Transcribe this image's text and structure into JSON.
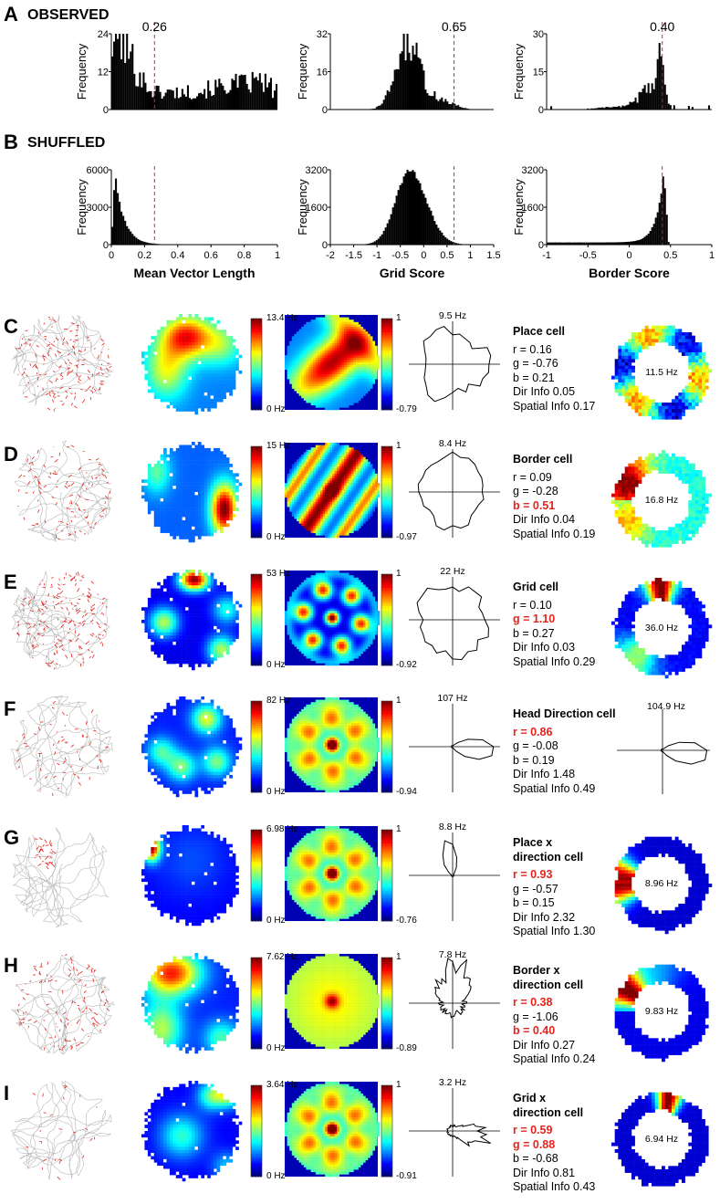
{
  "panel_letters": {
    "A": "A",
    "B": "B"
  },
  "panel_labels": {
    "observed": "OBSERVED",
    "shuffled": "SHUFFLED"
  },
  "colors": {
    "bars": "#000000",
    "threshold": "#e5231d",
    "highlight": "#e5231d",
    "trajectory": "#b9b9b9",
    "spikes": "#e5231d"
  },
  "chart_data": [
    {
      "type": "bar",
      "panel": "A",
      "column": "mvl",
      "ylabel": "Frequency",
      "threshold": 0.26,
      "threshold_label": "0.26",
      "xlim": [
        0,
        1
      ],
      "ylim": [
        0,
        24
      ],
      "yticks": [
        "0",
        "12",
        "24"
      ],
      "shape": "mvl-observed"
    },
    {
      "type": "bar",
      "panel": "A",
      "column": "grid",
      "ylabel": "Frequency",
      "threshold": 0.65,
      "threshold_label": "0.65",
      "xlim": [
        -2,
        1.5
      ],
      "ylim": [
        0,
        32
      ],
      "yticks": [
        "0",
        "16",
        "32"
      ],
      "shape": "grid-observed"
    },
    {
      "type": "bar",
      "panel": "A",
      "column": "border",
      "ylabel": "Frequency",
      "threshold": 0.4,
      "threshold_label": "0.40",
      "xlim": [
        -1,
        1
      ],
      "ylim": [
        0,
        30
      ],
      "yticks": [
        "0",
        "15",
        "30"
      ],
      "shape": "border-observed"
    },
    {
      "type": "bar",
      "panel": "B",
      "column": "mvl",
      "ylabel": "Frequency",
      "xlabel": "Mean Vector Length",
      "threshold": 0.26,
      "xlim": [
        0,
        1
      ],
      "ylim": [
        0,
        6000
      ],
      "yticks": [
        "0",
        "3000",
        "6000"
      ],
      "xticks": [
        "0",
        "0.2",
        "0.4",
        "0.6",
        "0.8",
        "1"
      ],
      "xtick_values": [
        0,
        0.2,
        0.4,
        0.6,
        0.8,
        1
      ],
      "shape": "mvl-shuffled"
    },
    {
      "type": "bar",
      "panel": "B",
      "column": "grid",
      "ylabel": "Frequency",
      "xlabel": "Grid Score",
      "threshold": 0.65,
      "xlim": [
        -2,
        1.5
      ],
      "ylim": [
        0,
        3200
      ],
      "yticks": [
        "0",
        "1600",
        "3200"
      ],
      "xticks": [
        "-2",
        "-1.5",
        "-1",
        "-0.5",
        "0",
        "0.5",
        "1",
        "1.5"
      ],
      "xtick_values": [
        -2,
        -1.5,
        -1,
        -0.5,
        0,
        0.5,
        1,
        1.5
      ],
      "shape": "grid-shuffled"
    },
    {
      "type": "bar",
      "panel": "B",
      "column": "border",
      "ylabel": "Frequency",
      "xlabel": "Border Score",
      "threshold": 0.4,
      "xlim": [
        -1,
        1
      ],
      "ylim": [
        0,
        3200
      ],
      "yticks": [
        "0",
        "1600",
        "3200"
      ],
      "xticks": [
        "-1",
        "-0.5",
        "0",
        "0.5",
        "1"
      ],
      "xtick_values": [
        -1,
        -0.5,
        0,
        0.5,
        1
      ],
      "shape": "border-shuffled"
    }
  ],
  "cells": [
    {
      "letter": "C",
      "type": "place",
      "title_lines": [
        "Place cell"
      ],
      "rate_max": "13.4 Hz",
      "rate_min": "0 Hz",
      "ac_max": "1",
      "ac_min": "-0.79",
      "polar_peak": "9.5 Hz",
      "right": "ring",
      "right_label": "11.5 Hz",
      "stats": [
        {
          "t": "r = 0.16",
          "hl": false
        },
        {
          "t": "g = -0.76",
          "hl": false
        },
        {
          "t": "b = 0.21",
          "hl": false
        },
        {
          "t": "Dir Info 0.05",
          "hl": false
        },
        {
          "t": "Spatial Info 0.17",
          "hl": false
        }
      ]
    },
    {
      "letter": "D",
      "type": "border",
      "title_lines": [
        "Border cell"
      ],
      "rate_max": "15 Hz",
      "rate_min": "0 Hz",
      "ac_max": "1",
      "ac_min": "-0.97",
      "polar_peak": "8.4 Hz",
      "right": "ring",
      "right_label": "16.8 Hz",
      "stats": [
        {
          "t": "r = 0.09",
          "hl": false
        },
        {
          "t": "g = -0.28",
          "hl": false
        },
        {
          "t": "b = 0.51",
          "hl": true
        },
        {
          "t": "Dir Info 0.04",
          "hl": false
        },
        {
          "t": "Spatial Info 0.19",
          "hl": false
        }
      ]
    },
    {
      "letter": "E",
      "type": "grid",
      "title_lines": [
        "Grid cell"
      ],
      "rate_max": "53 Hz",
      "rate_min": "0 Hz",
      "ac_max": "1",
      "ac_min": "-0.92",
      "polar_peak": "22 Hz",
      "right": "ring",
      "right_label": "36.0 Hz",
      "stats": [
        {
          "t": "r = 0.10",
          "hl": false
        },
        {
          "t": "g = 1.10",
          "hl": true
        },
        {
          "t": "b = 0.27",
          "hl": false
        },
        {
          "t": "Dir Info 0.03",
          "hl": false
        },
        {
          "t": "Spatial Info 0.29",
          "hl": false
        }
      ]
    },
    {
      "letter": "F",
      "type": "hd",
      "title_lines": [
        "Head Direction cell"
      ],
      "rate_max": "82 Hz",
      "rate_min": "0 Hz",
      "ac_max": "1",
      "ac_min": "-0.94",
      "polar_peak": "107 Hz",
      "right": "polar",
      "right_label": "104.9 Hz",
      "stats": [
        {
          "t": "r = 0.86",
          "hl": true
        },
        {
          "t": "g = -0.08",
          "hl": false
        },
        {
          "t": "b = 0.19",
          "hl": false
        },
        {
          "t": "Dir Info 1.48",
          "hl": false
        },
        {
          "t": "Spatial Info 0.49",
          "hl": false
        }
      ]
    },
    {
      "letter": "G",
      "type": "placedir",
      "title_lines": [
        "Place x",
        "direction cell"
      ],
      "rate_max": "6.98 Hz",
      "rate_min": "0 Hz",
      "ac_max": "1",
      "ac_min": "-0.76",
      "polar_peak": "8.8 Hz",
      "right": "ring",
      "right_label": "8.96 Hz",
      "stats": [
        {
          "t": "r = 0.93",
          "hl": true
        },
        {
          "t": "g = -0.57",
          "hl": false
        },
        {
          "t": "b = 0.15",
          "hl": false
        },
        {
          "t": "Dir Info 2.32",
          "hl": false
        },
        {
          "t": "Spatial Info 1.30",
          "hl": false
        }
      ]
    },
    {
      "letter": "H",
      "type": "borderdir",
      "title_lines": [
        "Border x",
        "direction cell"
      ],
      "rate_max": "7.62 Hz",
      "rate_min": "0 Hz",
      "ac_max": "1",
      "ac_min": "-0.89",
      "polar_peak": "7.8 Hz",
      "right": "ring",
      "right_label": "9.83 Hz",
      "stats": [
        {
          "t": "r = 0.38",
          "hl": true
        },
        {
          "t": "g = -1.06",
          "hl": false
        },
        {
          "t": "b = 0.40",
          "hl": true
        },
        {
          "t": "Dir Info 0.27",
          "hl": false
        },
        {
          "t": "Spatial Info 0.24",
          "hl": false
        }
      ]
    },
    {
      "letter": "I",
      "type": "griddir",
      "title_lines": [
        "Grid x",
        "direction cell"
      ],
      "rate_max": "3.64 Hz",
      "rate_min": "0 Hz",
      "ac_max": "1",
      "ac_min": "-0.91",
      "polar_peak": "3.2 Hz",
      "right": "ring",
      "right_label": "6.94 Hz",
      "stats": [
        {
          "t": "r = 0.59",
          "hl": true
        },
        {
          "t": "g = 0.88",
          "hl": true
        },
        {
          "t": "b = -0.68",
          "hl": false
        },
        {
          "t": "Dir Info 0.81",
          "hl": false
        },
        {
          "t": "Spatial Info 0.43",
          "hl": false
        }
      ]
    }
  ]
}
